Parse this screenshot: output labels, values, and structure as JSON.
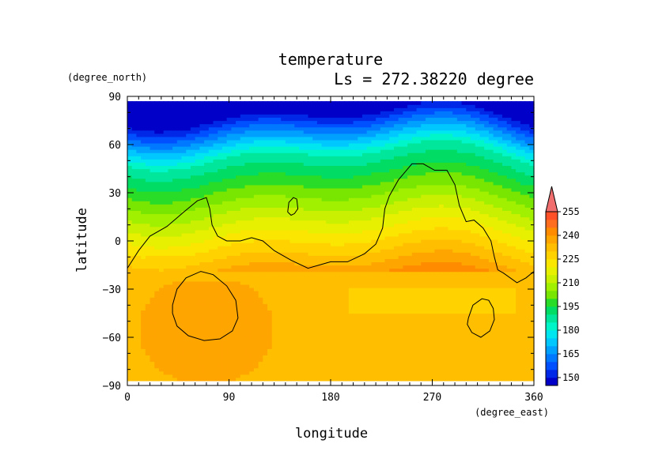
{
  "chart_data": {
    "type": "heatmap",
    "title": "temperature",
    "subtitle": "Ls = 272.38220 degree",
    "xlabel": "longitude",
    "ylabel": "latitude",
    "x_unit": "(degree_east)",
    "y_unit": "(degree_north)",
    "xlim": [
      0,
      360
    ],
    "ylim": [
      -90,
      90
    ],
    "x_ticks": [
      "0",
      "90",
      "180",
      "270",
      "360"
    ],
    "y_ticks": [
      "90",
      "60",
      "30",
      "0",
      "−30",
      "−60",
      "−90"
    ],
    "x_tick_values": [
      0,
      90,
      180,
      270,
      360
    ],
    "y_tick_values": [
      90,
      60,
      30,
      0,
      -30,
      -60,
      -90
    ],
    "data_lat_range": [
      -87,
      87
    ],
    "colorbar": {
      "levels": [
        145,
        150,
        155,
        160,
        165,
        170,
        175,
        180,
        185,
        190,
        195,
        200,
        205,
        210,
        215,
        220,
        225,
        230,
        235,
        240,
        245,
        250,
        255,
        260
      ],
      "colors": [
        "#0000c8",
        "#0028e6",
        "#0050ff",
        "#0078ff",
        "#00a0ff",
        "#00c8ff",
        "#00e6f0",
        "#00f5c8",
        "#00e69b",
        "#00dc64",
        "#28dc28",
        "#78e600",
        "#a0f000",
        "#c8f000",
        "#e6f000",
        "#fae600",
        "#ffd200",
        "#ffbe00",
        "#ffa500",
        "#ff8c00",
        "#ff6e1e",
        "#ff5028",
        "#f03c3c",
        "#f06e6e"
      ],
      "tick_labels": [
        "150",
        "165",
        "180",
        "195",
        "210",
        "225",
        "240",
        "255"
      ],
      "tick_values": [
        150,
        165,
        180,
        195,
        210,
        225,
        240,
        255
      ],
      "extend": "max"
    },
    "contour_lines": [
      {
        "name": "",
        "points": [
          [
            0,
            -17
          ],
          [
            10,
            -6
          ],
          [
            20,
            3
          ],
          [
            35,
            9
          ],
          [
            50,
            18
          ],
          [
            62,
            25
          ],
          [
            70,
            27
          ],
          [
            73,
            20
          ],
          [
            75,
            10
          ],
          [
            80,
            3
          ],
          [
            88,
            0
          ],
          [
            100,
            0
          ],
          [
            110,
            2
          ],
          [
            120,
            0
          ],
          [
            130,
            -6
          ],
          [
            145,
            -12
          ],
          [
            160,
            -17
          ],
          [
            170,
            -15
          ],
          [
            180,
            -13
          ],
          [
            195,
            -13
          ],
          [
            210,
            -8
          ],
          [
            220,
            -2
          ],
          [
            226,
            8
          ],
          [
            228,
            20
          ],
          [
            232,
            28
          ],
          [
            240,
            38
          ],
          [
            252,
            48
          ],
          [
            262,
            48
          ],
          [
            272,
            44
          ],
          [
            283,
            44
          ],
          [
            290,
            35
          ],
          [
            294,
            22
          ],
          [
            300,
            12
          ],
          [
            307,
            13
          ],
          [
            315,
            8
          ],
          [
            322,
            0
          ],
          [
            325,
            -10
          ],
          [
            328,
            -18
          ],
          [
            333,
            -20
          ],
          [
            345,
            -26
          ],
          [
            353,
            -23
          ],
          [
            360,
            -19
          ]
        ]
      },
      {
        "name": "",
        "points": [
          [
            142,
            18
          ],
          [
            143,
            24
          ],
          [
            147,
            27
          ],
          [
            150,
            26
          ],
          [
            151,
            20
          ],
          [
            148,
            17
          ],
          [
            145,
            16
          ],
          [
            142,
            18
          ]
        ]
      },
      {
        "name": "",
        "points": [
          [
            40,
            -40
          ],
          [
            44,
            -30
          ],
          [
            52,
            -23
          ],
          [
            65,
            -19
          ],
          [
            76,
            -21
          ],
          [
            88,
            -28
          ],
          [
            96,
            -37
          ],
          [
            98,
            -48
          ],
          [
            93,
            -56
          ],
          [
            82,
            -61
          ],
          [
            68,
            -62
          ],
          [
            54,
            -59
          ],
          [
            44,
            -53
          ],
          [
            40,
            -45
          ],
          [
            40,
            -40
          ]
        ]
      },
      {
        "name": "",
        "points": [
          [
            302,
            -48
          ],
          [
            306,
            -40
          ],
          [
            314,
            -36
          ],
          [
            320,
            -37
          ],
          [
            324,
            -42
          ],
          [
            325,
            -49
          ],
          [
            321,
            -56
          ],
          [
            313,
            -60
          ],
          [
            305,
            -57
          ],
          [
            301,
            -52
          ],
          [
            302,
            -48
          ]
        ]
      }
    ]
  }
}
